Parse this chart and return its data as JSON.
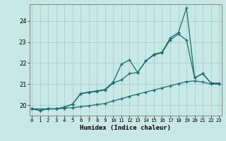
{
  "xlabel": "Humidex (Indice chaleur)",
  "bg_color": "#c8e8e5",
  "grid_color": "#a8d0cc",
  "line_color": "#1a6e6e",
  "xlim": [
    -0.3,
    23.3
  ],
  "ylim": [
    19.5,
    24.8
  ],
  "xticks": [
    0,
    1,
    2,
    3,
    4,
    5,
    6,
    7,
    8,
    9,
    10,
    11,
    12,
    13,
    14,
    15,
    16,
    17,
    18,
    19,
    20,
    21,
    22,
    23
  ],
  "yticks": [
    20,
    21,
    22,
    23,
    24
  ],
  "line1_x": [
    0,
    1,
    2,
    3,
    4,
    5,
    6,
    7,
    8,
    9,
    10,
    11,
    12,
    13,
    14,
    15,
    16,
    17,
    18,
    19,
    20,
    21,
    22,
    23
  ],
  "line1_y": [
    19.82,
    19.75,
    19.82,
    19.82,
    19.85,
    19.88,
    19.92,
    19.97,
    20.02,
    20.08,
    20.2,
    20.3,
    20.42,
    20.52,
    20.62,
    20.72,
    20.82,
    20.92,
    21.02,
    21.12,
    21.15,
    21.1,
    21.0,
    21.0
  ],
  "line2_x": [
    0,
    1,
    2,
    3,
    4,
    5,
    6,
    7,
    8,
    9,
    10,
    11,
    12,
    13,
    14,
    15,
    16,
    17,
    18,
    19,
    20,
    21,
    22,
    23
  ],
  "line2_y": [
    19.82,
    19.75,
    19.82,
    19.82,
    19.9,
    20.05,
    20.55,
    20.6,
    20.65,
    20.72,
    21.05,
    21.2,
    21.5,
    21.55,
    22.1,
    22.38,
    22.5,
    23.1,
    23.38,
    23.1,
    21.3,
    21.5,
    21.05,
    21.0
  ],
  "line3_x": [
    0,
    2,
    3,
    4,
    5,
    6,
    7,
    8,
    9,
    10,
    11,
    12,
    13,
    14,
    15,
    16,
    17,
    18,
    19,
    20,
    21,
    22,
    23
  ],
  "line3_y": [
    19.82,
    19.82,
    19.82,
    19.9,
    20.05,
    20.55,
    20.62,
    20.68,
    20.75,
    21.1,
    21.95,
    22.15,
    21.55,
    22.1,
    22.42,
    22.52,
    23.2,
    23.45,
    24.62,
    21.3,
    21.5,
    21.05,
    21.05
  ]
}
